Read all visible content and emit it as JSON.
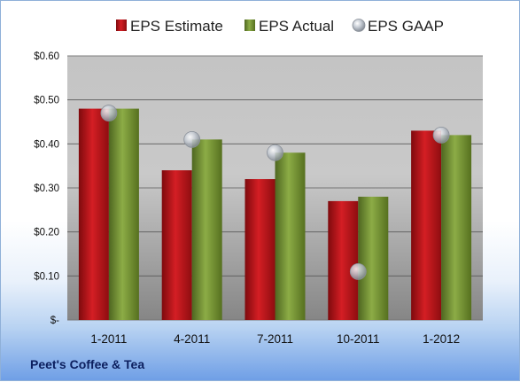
{
  "chart_data": {
    "type": "bar",
    "categories": [
      "1-2011",
      "4-2011",
      "7-2011",
      "10-2011",
      "1-2012"
    ],
    "series": [
      {
        "name": "EPS Estimate",
        "kind": "bar",
        "color": "#c8191e",
        "values": [
          0.48,
          0.34,
          0.32,
          0.27,
          0.43
        ]
      },
      {
        "name": "EPS Actual",
        "kind": "bar",
        "color": "#7a9a38",
        "values": [
          0.48,
          0.41,
          0.38,
          0.28,
          0.42
        ]
      },
      {
        "name": "EPS GAAP",
        "kind": "marker",
        "color": "#b5bcc6",
        "values": [
          0.47,
          0.41,
          0.38,
          0.11,
          0.42
        ]
      }
    ],
    "y_ticks": [
      "$-",
      "$0.10",
      "$0.20",
      "$0.30",
      "$0.40",
      "$0.50",
      "$0.60"
    ],
    "ylim": [
      0,
      0.6
    ],
    "grid": true,
    "legend_position": "top"
  },
  "footer": {
    "company": "Peet's Coffee & Tea"
  }
}
